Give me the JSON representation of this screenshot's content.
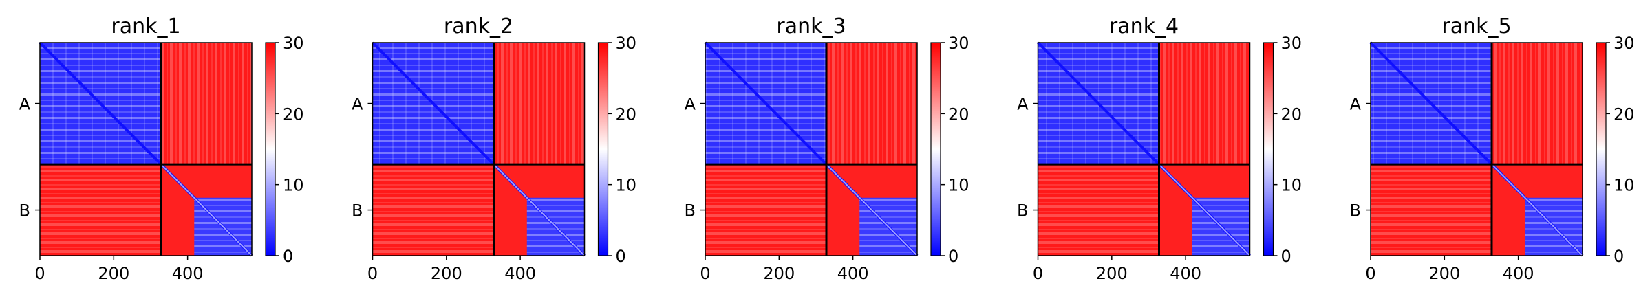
{
  "chart_data": [
    {
      "type": "heatmap",
      "title": "rank_1",
      "x_ticks": [
        "0",
        "200",
        "400"
      ],
      "y_labels": [
        "A",
        "B"
      ],
      "colorbar_ticks": [
        "0",
        "10",
        "20",
        "30"
      ],
      "colorbar_range": [
        0,
        30
      ],
      "colormap": [
        "#0000ff",
        "#ffffff",
        "#ff0000"
      ],
      "xlim": [
        0,
        574
      ],
      "chain_boundary": 328,
      "grid": false,
      "legend": "none"
    },
    {
      "type": "heatmap",
      "title": "rank_2",
      "x_ticks": [
        "0",
        "200",
        "400"
      ],
      "y_labels": [
        "A",
        "B"
      ],
      "colorbar_ticks": [
        "0",
        "10",
        "20",
        "30"
      ],
      "colorbar_range": [
        0,
        30
      ],
      "colormap": [
        "#0000ff",
        "#ffffff",
        "#ff0000"
      ],
      "xlim": [
        0,
        574
      ],
      "chain_boundary": 328,
      "grid": false,
      "legend": "none"
    },
    {
      "type": "heatmap",
      "title": "rank_3",
      "x_ticks": [
        "0",
        "200",
        "400"
      ],
      "y_labels": [
        "A",
        "B"
      ],
      "colorbar_ticks": [
        "0",
        "10",
        "20",
        "30"
      ],
      "colorbar_range": [
        0,
        30
      ],
      "colormap": [
        "#0000ff",
        "#ffffff",
        "#ff0000"
      ],
      "xlim": [
        0,
        574
      ],
      "chain_boundary": 328,
      "grid": false,
      "legend": "none"
    },
    {
      "type": "heatmap",
      "title": "rank_4",
      "x_ticks": [
        "0",
        "200",
        "400"
      ],
      "y_labels": [
        "A",
        "B"
      ],
      "colorbar_ticks": [
        "0",
        "10",
        "20",
        "30"
      ],
      "colorbar_range": [
        0,
        30
      ],
      "colormap": [
        "#0000ff",
        "#ffffff",
        "#ff0000"
      ],
      "xlim": [
        0,
        574
      ],
      "chain_boundary": 328,
      "grid": false,
      "legend": "none"
    },
    {
      "type": "heatmap",
      "title": "rank_5",
      "x_ticks": [
        "0",
        "200",
        "400"
      ],
      "y_labels": [
        "A",
        "B"
      ],
      "colorbar_ticks": [
        "0",
        "10",
        "20",
        "30"
      ],
      "colorbar_range": [
        0,
        30
      ],
      "colormap": [
        "#0000ff",
        "#ffffff",
        "#ff0000"
      ],
      "xlim": [
        0,
        574
      ],
      "chain_boundary": 328,
      "grid": false,
      "legend": "none"
    }
  ]
}
